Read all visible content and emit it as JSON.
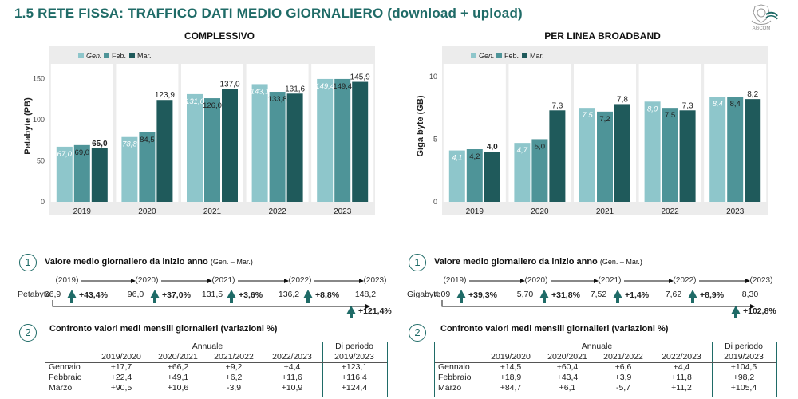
{
  "page": {
    "title": "1.5 RETE FISSA: TRAFFICO DATI MEDIO GIORNALIERO (download + upload)",
    "logo_text": "AGCOM"
  },
  "colors": {
    "title": "#1f6b67",
    "gen": "#8ec6cb",
    "feb": "#4e9498",
    "mar": "#1f5a5b",
    "plot_bg": "#ececec",
    "arrow": "#1f6b67"
  },
  "chart_data": [
    {
      "type": "bar",
      "title": "COMPLESSIVO",
      "ylabel": "Petabyte (PB)",
      "xlabel": "",
      "ylim": [
        0,
        160
      ],
      "yticks": [
        0,
        50,
        100,
        150
      ],
      "categories": [
        "2019",
        "2020",
        "2021",
        "2022",
        "2023"
      ],
      "legend_position": "top-left",
      "grid": false,
      "series": [
        {
          "name": "Gen.",
          "values": [
            67.0,
            78.8,
            131.0,
            143.1,
            149.4
          ],
          "labels": [
            "67,0",
            "78,8",
            "131,0",
            "143,1",
            "149,4"
          ]
        },
        {
          "name": "Feb.",
          "values": [
            69.0,
            84.5,
            126.0,
            133.8,
            149.4
          ],
          "labels": [
            "69,0",
            "84,5",
            "126,0",
            "133,8",
            "149,4"
          ]
        },
        {
          "name": "Mar.",
          "values": [
            65.0,
            123.9,
            137.0,
            131.6,
            145.9
          ],
          "labels": [
            "65,0",
            "123,9",
            "137,0",
            "131,6",
            "145,9"
          ]
        }
      ]
    },
    {
      "type": "bar",
      "title": "PER LINEA BROADBAND",
      "ylabel": "Giga byte (GB)",
      "xlabel": "",
      "ylim": [
        0,
        10.5
      ],
      "yticks": [
        0,
        5,
        10
      ],
      "categories": [
        "2019",
        "2020",
        "2021",
        "2022",
        "2023"
      ],
      "legend_position": "top-left",
      "grid": false,
      "series": [
        {
          "name": "Gen.",
          "values": [
            4.1,
            4.7,
            7.5,
            8.0,
            8.4
          ],
          "labels": [
            "4,1",
            "4,7",
            "7,5",
            "8,0",
            "8,4"
          ]
        },
        {
          "name": "Feb.",
          "values": [
            4.2,
            5.0,
            7.2,
            7.5,
            8.4
          ],
          "labels": [
            "4,2",
            "5,0",
            "7,2",
            "7,5",
            "8,4"
          ]
        },
        {
          "name": "Mar.",
          "values": [
            4.0,
            7.3,
            7.8,
            7.3,
            8.2
          ],
          "labels": [
            "4,0",
            "7,3",
            "7,8",
            "7,3",
            "8,2"
          ]
        }
      ]
    }
  ],
  "section1": {
    "number": "1",
    "label": "Valore medio giornaliero da inizio anno",
    "label_note": "(Gen. – Mar.)"
  },
  "growth": [
    {
      "unit": "Petabyte",
      "years": [
        "(2019)",
        "(2020)",
        "(2021)",
        "(2022)",
        "(2023)"
      ],
      "values": [
        "66,9",
        "96,0",
        "131,5",
        "136,2",
        "148,2"
      ],
      "changes": [
        "+43,4%",
        "+37,0%",
        "+3,6%",
        "+8,8%"
      ],
      "total_change": "+121,4%"
    },
    {
      "unit": "Gigabyte",
      "years": [
        "(2019)",
        "(2020)",
        "(2021)",
        "(2022)",
        "(2023)"
      ],
      "values": [
        "4,09",
        "5,70",
        "7,52",
        "7,62",
        "8,30"
      ],
      "changes": [
        "+39,3%",
        "+31,8%",
        "+1,4%",
        "+8,9%"
      ],
      "total_change": "+102,8%"
    }
  ],
  "section2": {
    "number": "2",
    "label": "Confronto valori medi mensili giornalieri (variazioni %)"
  },
  "tables": [
    {
      "group_header": "Annuale",
      "period_header": "Di periodo",
      "columns": [
        "2019/2020",
        "2020/2021",
        "2021/2022",
        "2022/2023",
        "2019/2023"
      ],
      "rows": [
        {
          "label": "Gennaio",
          "cells": [
            "+17,7",
            "+66,2",
            "+9,2",
            "+4,4",
            "+123,1"
          ]
        },
        {
          "label": "Febbraio",
          "cells": [
            "+22,4",
            "+49,1",
            "+6,2",
            "+11,6",
            "+116,4"
          ]
        },
        {
          "label": "Marzo",
          "cells": [
            "+90,5",
            "+10,6",
            "-3,9",
            "+10,9",
            "+124,4"
          ]
        }
      ]
    },
    {
      "group_header": "Annuale",
      "period_header": "Di periodo",
      "columns": [
        "2019/2020",
        "2020/2021",
        "2021/2022",
        "2022/2023",
        "2019/2023"
      ],
      "rows": [
        {
          "label": "Gennaio",
          "cells": [
            "+14,5",
            "+60,4",
            "+6,6",
            "+4,4",
            "+104,5"
          ]
        },
        {
          "label": "Febbraio",
          "cells": [
            "+18,9",
            "+43,4",
            "+3,9",
            "+11,8",
            "+98,2"
          ]
        },
        {
          "label": "Marzo",
          "cells": [
            "+84,7",
            "+6,1",
            "-5,7",
            "+11,2",
            "+105,4"
          ]
        }
      ]
    }
  ]
}
